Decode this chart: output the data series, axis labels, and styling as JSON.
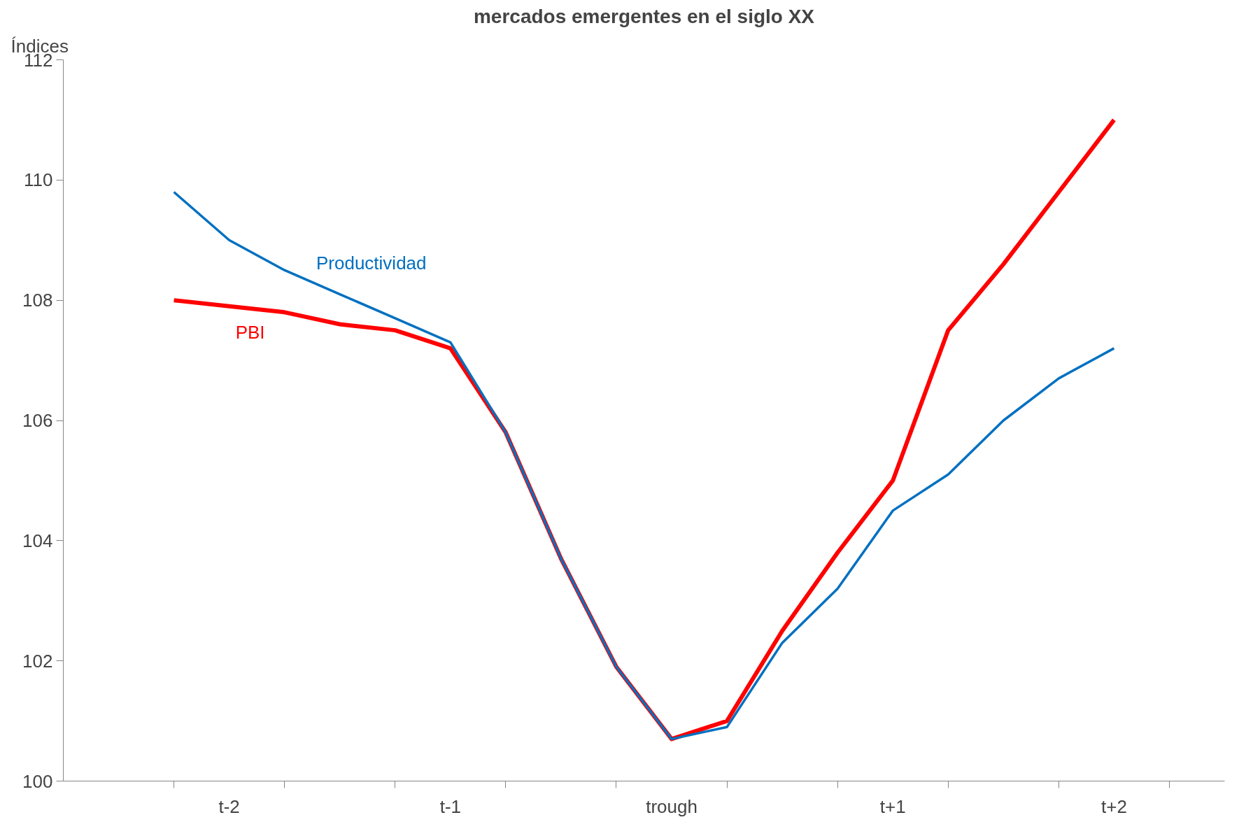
{
  "chart_data": {
    "type": "line",
    "title": "mercados emergentes en el siglo XX",
    "ylabel": "Índices",
    "categories": [
      null,
      "t-2",
      null,
      null,
      null,
      "t-1",
      null,
      null,
      null,
      "trough",
      null,
      null,
      null,
      "t+1",
      null,
      null,
      null,
      "t+2"
    ],
    "ylim": [
      100,
      112
    ],
    "yticks": [
      100,
      102,
      104,
      106,
      108,
      110,
      112
    ],
    "series": [
      {
        "name": "Productividad",
        "color": "#0070c0",
        "values": [
          109.8,
          109.0,
          108.5,
          108.1,
          107.7,
          107.3,
          105.8,
          103.7,
          101.9,
          100.7,
          100.9,
          102.3,
          103.2,
          104.5,
          105.1,
          106.0,
          106.7,
          107.2
        ]
      },
      {
        "name": "PBI",
        "color": "#ff0000",
        "values": [
          108.0,
          107.9,
          107.8,
          107.6,
          107.5,
          107.2,
          105.8,
          103.7,
          101.9,
          100.7,
          101.0,
          102.5,
          103.8,
          105.0,
          107.5,
          108.6,
          109.8,
          111.0
        ]
      }
    ],
    "grid": false,
    "marker": "none",
    "line_style": "solid"
  }
}
